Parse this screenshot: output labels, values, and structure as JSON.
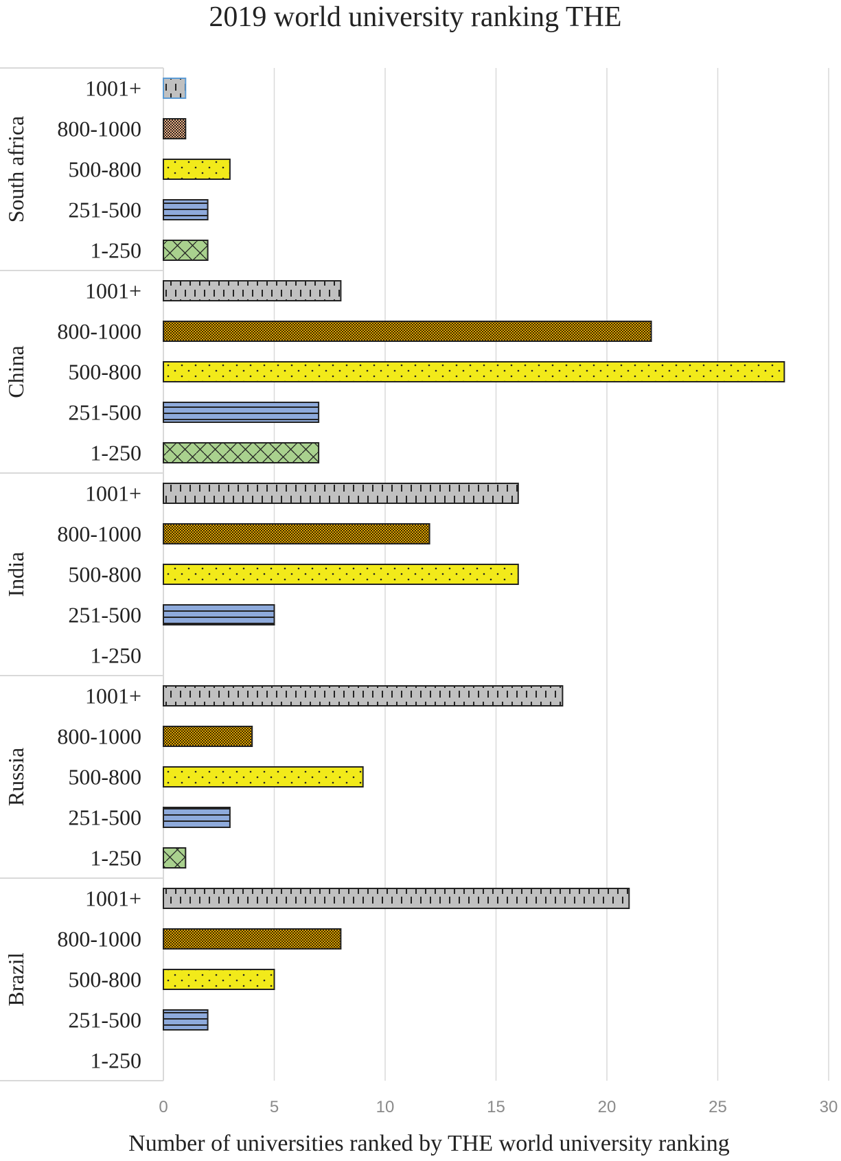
{
  "chart_data": {
    "type": "bar",
    "orientation": "horizontal",
    "title": "2019 world university ranking THE",
    "xlabel": "Number of universities ranked by THE world university ranking",
    "ylabel": "",
    "xlim": [
      0,
      30
    ],
    "xticks": [
      "0",
      "5",
      "10",
      "15",
      "20",
      "25",
      "30"
    ],
    "grid": true,
    "legend": "none",
    "categories": [
      "1001+",
      "800-1000",
      "500-800",
      "251-500",
      "1-250"
    ],
    "category_colors": {
      "1001+": "#c0c0c0",
      "800-1000": "#e0a400",
      "500-800": "#f2ea1a",
      "251-500": "#8eaadb",
      "1-250": "#a9d18e"
    },
    "groups": [
      {
        "name": "South africa",
        "values": [
          1,
          1,
          3,
          2,
          2
        ]
      },
      {
        "name": "China",
        "values": [
          8,
          22,
          28,
          7,
          7
        ]
      },
      {
        "name": "India",
        "values": [
          16,
          12,
          16,
          5,
          0
        ]
      },
      {
        "name": "Russia",
        "values": [
          18,
          4,
          9,
          3,
          1
        ]
      },
      {
        "name": "Brazil",
        "values": [
          21,
          8,
          5,
          2,
          0
        ]
      }
    ]
  }
}
